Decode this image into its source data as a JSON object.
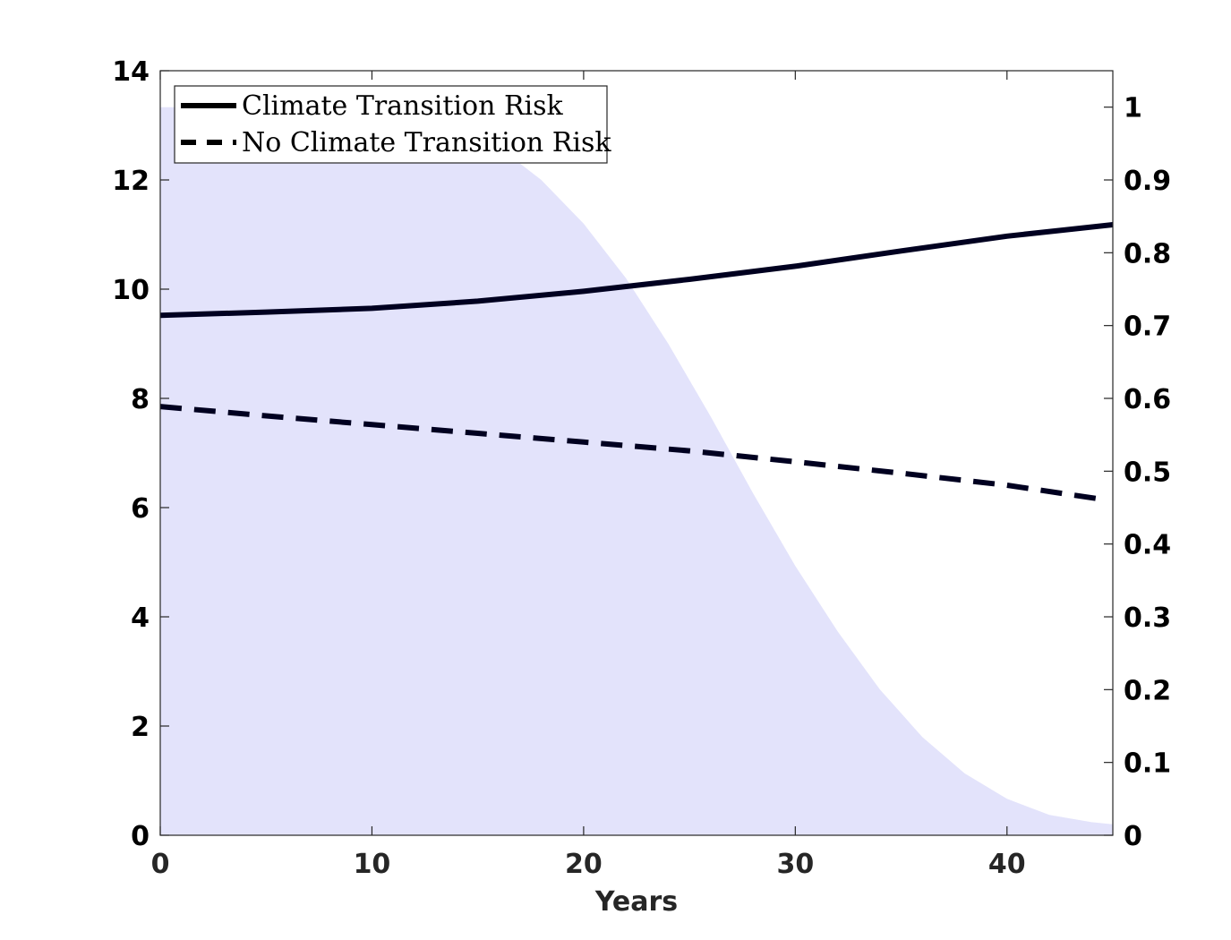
{
  "chart_data": {
    "type": "line",
    "title": "",
    "xlabel": "Years",
    "ylabel": "",
    "ylabel_right": "",
    "xlim": [
      0,
      45
    ],
    "ylim": [
      0,
      14
    ],
    "ylim_right": [
      0,
      1.05
    ],
    "xticks": [
      "0",
      "10",
      "20",
      "30",
      "40"
    ],
    "xtick_values": [
      0,
      10,
      20,
      30,
      40
    ],
    "yticks": [
      "0",
      "2",
      "4",
      "6",
      "8",
      "10",
      "12",
      "14"
    ],
    "ytick_values": [
      0,
      2,
      4,
      6,
      8,
      10,
      12,
      14
    ],
    "yticks_right": [
      "0",
      "0.1",
      "0.2",
      "0.3",
      "0.4",
      "0.5",
      "0.6",
      "0.7",
      "0.8",
      "0.9",
      "1"
    ],
    "ytick_right_values": [
      0,
      0.1,
      0.2,
      0.3,
      0.4,
      0.5,
      0.6,
      0.7,
      0.8,
      0.9,
      1.0
    ],
    "grid": false,
    "legend_position": "top-left",
    "series": [
      {
        "name": "Climate Transition Risk",
        "style": "solid",
        "color": "#000020",
        "axis": "left",
        "x": [
          0,
          5,
          10,
          15,
          20,
          25,
          30,
          35,
          40,
          45
        ],
        "y": [
          9.52,
          9.58,
          9.65,
          9.78,
          9.96,
          10.18,
          10.42,
          10.7,
          10.97,
          11.18
        ]
      },
      {
        "name": "No Climate Transition Risk",
        "style": "dashed",
        "color": "#000020",
        "axis": "left",
        "x": [
          0,
          5,
          10,
          15,
          20,
          25,
          30,
          35,
          40,
          44.5
        ],
        "y": [
          7.85,
          7.68,
          7.52,
          7.36,
          7.2,
          7.04,
          6.84,
          6.63,
          6.41,
          6.15
        ]
      }
    ],
    "area": {
      "name": "shaded probability",
      "axis": "right",
      "color": "#e3e3fb",
      "x": [
        0,
        2,
        4,
        6,
        8,
        10,
        12,
        14,
        16,
        18,
        20,
        22,
        24,
        26,
        28,
        30,
        32,
        34,
        36,
        38,
        40,
        42,
        44,
        45
      ],
      "y": [
        1.0,
        1.0,
        1.0,
        1.0,
        1.0,
        1.0,
        0.995,
        0.975,
        0.945,
        0.9,
        0.84,
        0.765,
        0.675,
        0.575,
        0.47,
        0.37,
        0.28,
        0.2,
        0.135,
        0.085,
        0.05,
        0.028,
        0.018,
        0.015
      ]
    }
  }
}
